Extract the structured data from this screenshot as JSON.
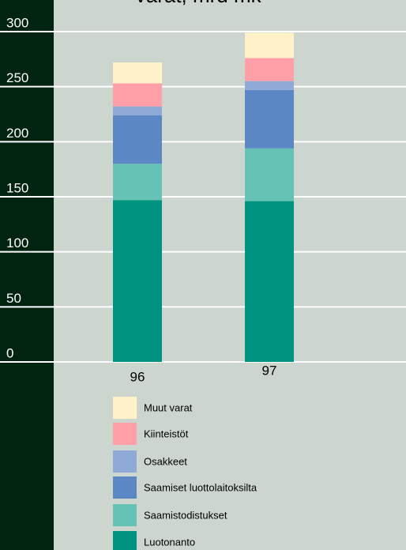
{
  "chart_data": {
    "type": "stacked_bar",
    "title": "Varat, mrd mk",
    "categories": [
      "96",
      "97"
    ],
    "series": [
      {
        "name": "Luotonanto",
        "color": "#009480",
        "values": [
          147,
          146
        ]
      },
      {
        "name": "Saamistodistukset",
        "color": "#66c2b4",
        "values": [
          33,
          48
        ]
      },
      {
        "name": "Saamiset luottolaitoksilta",
        "color": "#5b88c4",
        "values": [
          44,
          53
        ]
      },
      {
        "name": "Osakkeet",
        "color": "#8faad6",
        "values": [
          8,
          8
        ]
      },
      {
        "name": "Kiinteistöt",
        "color": "#ffa0a8",
        "values": [
          21,
          21
        ]
      },
      {
        "name": "Muut varat",
        "color": "#fff2c8",
        "values": [
          19,
          23
        ]
      }
    ],
    "ylim": [
      0,
      300
    ],
    "yticks": [
      0,
      50,
      100,
      150,
      200,
      250,
      300
    ],
    "grid": true
  }
}
